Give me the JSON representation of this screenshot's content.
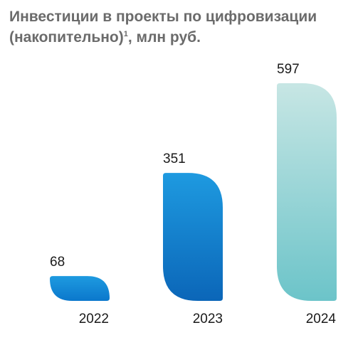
{
  "title": {
    "main": "Инвестиции в проекты по цифровизации",
    "line2": "(накопительно)",
    "footnote": "1",
    "unit": ", млн руб."
  },
  "chart_data": {
    "type": "bar",
    "categories": [
      "2022",
      "2023",
      "2024"
    ],
    "values": [
      68,
      351,
      597
    ],
    "title": "Инвестиции в проекты по цифровизации (накопительно)¹, млн руб.",
    "xlabel": "",
    "ylabel": "",
    "ylim": [
      0,
      597
    ],
    "grid": false,
    "legend": "none",
    "colors": {
      "2022": [
        "#1e9ae0",
        "#0b78cc"
      ],
      "2023": [
        "#1e9ae0",
        "#0b66b8"
      ],
      "2024": [
        "#c7e6e4",
        "#6cc4c9"
      ]
    }
  }
}
